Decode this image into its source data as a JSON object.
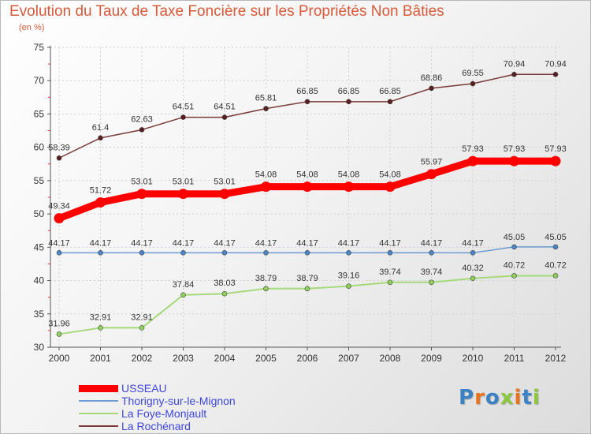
{
  "chart_data": {
    "type": "line",
    "title": "Evolution du Taux de Taxe Foncière sur les Propriétés Non Bâties",
    "ylabel": "(en %)",
    "xlabel": "",
    "categories": [
      "2000",
      "2001",
      "2002",
      "2003",
      "2004",
      "2005",
      "2006",
      "2007",
      "2008",
      "2009",
      "2010",
      "2011",
      "2012"
    ],
    "ylim": [
      30,
      75
    ],
    "yticks": [
      30,
      35,
      40,
      45,
      50,
      55,
      60,
      65,
      70,
      75
    ],
    "series": [
      {
        "name": "USSEAU",
        "color": "#ff0000",
        "values": [
          49.34,
          51.72,
          53.01,
          53.01,
          53.01,
          54.08,
          54.08,
          54.08,
          54.08,
          55.97,
          57.93,
          57.93,
          57.93
        ],
        "labels": [
          "49.34",
          "51.72",
          "53.01",
          "53.01",
          "53.01",
          "54.08",
          "54.08",
          "54.08",
          "54.08",
          "55.97",
          "57.93",
          "57.93",
          "57.93"
        ]
      },
      {
        "name": "Thorigny-sur-le-Mignon",
        "color": "#6b9bd1",
        "values": [
          44.17,
          44.17,
          44.17,
          44.17,
          44.17,
          44.17,
          44.17,
          44.17,
          44.17,
          44.17,
          44.17,
          45.05,
          45.05
        ],
        "labels": [
          "44.17",
          "44.17",
          "44.17",
          "44.17",
          "44.17",
          "44.17",
          "44.17",
          "44.17",
          "44.17",
          "44.17",
          "44.17",
          "45.05",
          "45.05"
        ]
      },
      {
        "name": "La Foye-Monjault",
        "color": "#a6d97a",
        "values": [
          31.96,
          32.91,
          32.91,
          37.84,
          38.03,
          38.79,
          38.79,
          39.16,
          39.74,
          39.74,
          40.32,
          40.72,
          40.72
        ],
        "labels": [
          "31.96",
          "32.91",
          "32.91",
          "37.84",
          "38.03",
          "38.79",
          "38.79",
          "39.16",
          "39.74",
          "39.74",
          "40.32",
          "40.72",
          "40.72"
        ]
      },
      {
        "name": "La Rochénard",
        "color": "#7a3a3a",
        "values": [
          58.39,
          61.4,
          62.63,
          64.51,
          64.51,
          65.81,
          66.85,
          66.85,
          66.85,
          68.86,
          69.55,
          70.94,
          70.94
        ],
        "labels": [
          "58.39",
          "61.4",
          "62.63",
          "64.51",
          "64.51",
          "65.81",
          "66.85",
          "66.85",
          "66.85",
          "68.86",
          "69.55",
          "70.94",
          "70.94"
        ]
      }
    ]
  },
  "logo": {
    "letters": [
      "P",
      "r",
      "o",
      "x",
      "i",
      "t",
      "i"
    ],
    "colors": [
      "#3b82c4",
      "#e8731c",
      "#3b82c4",
      "#8dc63f",
      "#e8731c",
      "#3b82c4",
      "#8dc63f"
    ]
  }
}
